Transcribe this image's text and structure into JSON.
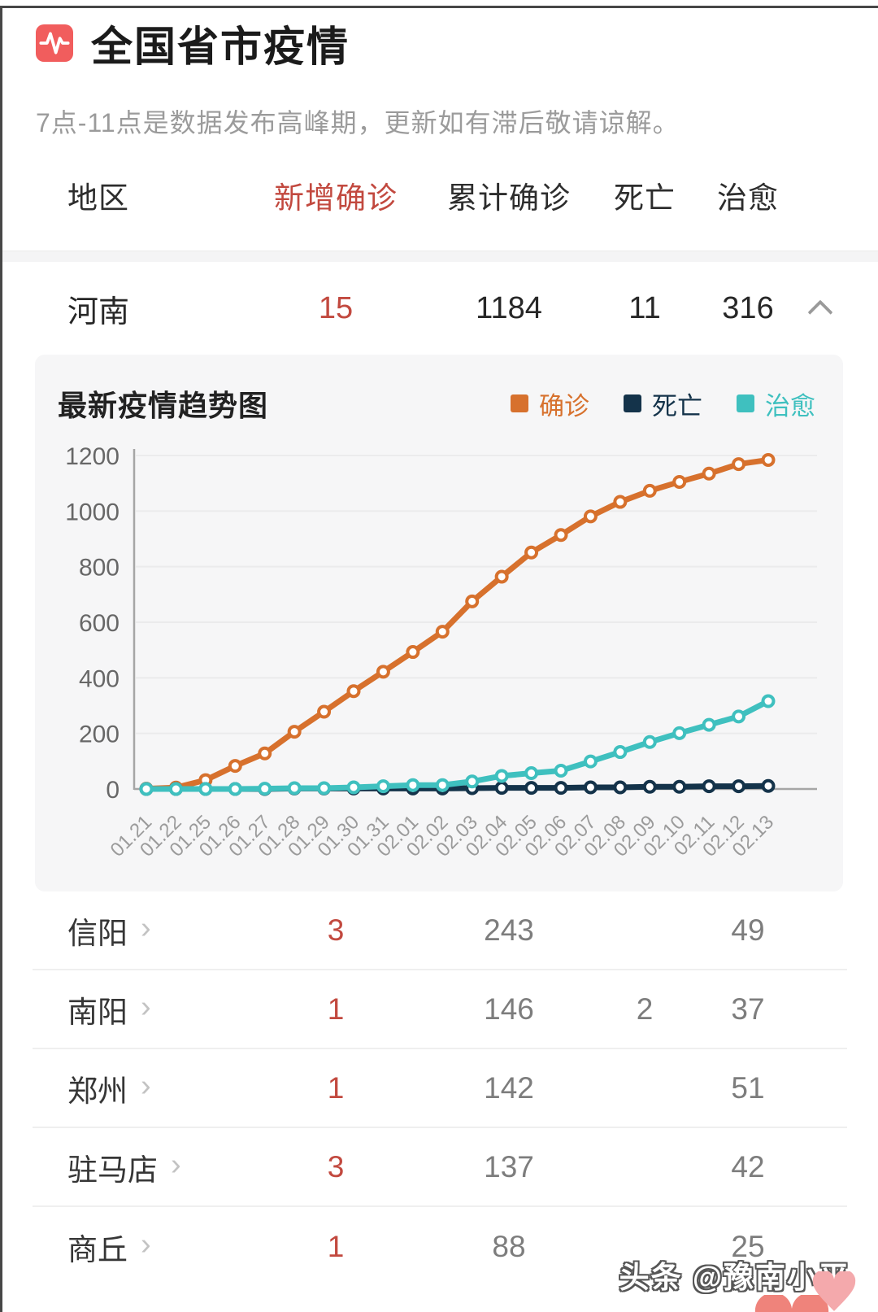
{
  "page": {
    "accent_red": "#c2493f",
    "panel_bg": "#f6f6f7"
  },
  "header": {
    "icon": "pulse-icon",
    "icon_bg": "#f15d5d",
    "title": "全国省市疫情",
    "subtitle": "7点-11点是数据发布高峰期，更新如有滞后敬请谅解。"
  },
  "table": {
    "columns": {
      "region": "地区",
      "new": "新增确诊",
      "total": "累计确诊",
      "deaths": "死亡",
      "cured": "治愈"
    },
    "province_row": {
      "region": "河南",
      "new": "15",
      "total": "1184",
      "deaths": "11",
      "cured": "316",
      "expanded": true
    },
    "city_rows": [
      {
        "region": "信阳",
        "new": "3",
        "total": "243",
        "deaths": "",
        "cured": "49"
      },
      {
        "region": "南阳",
        "new": "1",
        "total": "146",
        "deaths": "2",
        "cured": "37"
      },
      {
        "region": "郑州",
        "new": "1",
        "total": "142",
        "deaths": "",
        "cured": "51"
      },
      {
        "region": "驻马店",
        "new": "3",
        "total": "137",
        "deaths": "",
        "cured": "42"
      },
      {
        "region": "商丘",
        "new": "1",
        "total": "88",
        "deaths": "",
        "cured": "25"
      }
    ]
  },
  "chart": {
    "title": "最新疫情趋势图"
  },
  "chart_data": {
    "type": "line",
    "title": "最新疫情趋势图",
    "x": [
      "01.21",
      "01.22",
      "01.25",
      "01.26",
      "01.27",
      "01.28",
      "01.29",
      "01.30",
      "01.31",
      "02.01",
      "02.02",
      "02.03",
      "02.04",
      "02.05",
      "02.06",
      "02.07",
      "02.08",
      "02.09",
      "02.10",
      "02.11",
      "02.12",
      "02.13"
    ],
    "series": [
      {
        "name": "确诊",
        "color": "#d7712d",
        "values": [
          1,
          5,
          32,
          83,
          128,
          206,
          278,
          352,
          422,
          493,
          566,
          675,
          764,
          851,
          914,
          981,
          1033,
          1073,
          1105,
          1135,
          1169,
          1184
        ]
      },
      {
        "name": "死亡",
        "color": "#14334a",
        "values": [
          0,
          0,
          0,
          0,
          0,
          2,
          2,
          2,
          2,
          2,
          2,
          3,
          4,
          4,
          4,
          6,
          6,
          8,
          8,
          10,
          10,
          11
        ]
      },
      {
        "name": "治愈",
        "color": "#3fc0bf",
        "values": [
          0,
          0,
          0,
          0,
          1,
          3,
          3,
          6,
          10,
          14,
          14,
          27,
          47,
          57,
          66,
          99,
          133,
          169,
          201,
          231,
          261,
          316
        ]
      }
    ],
    "ylim": [
      0,
      1200
    ],
    "yticks": [
      0,
      200,
      400,
      600,
      800,
      1000,
      1200
    ],
    "grid": true,
    "legend_position": "top-right"
  },
  "watermark": {
    "text": "头条 @豫南小平"
  }
}
